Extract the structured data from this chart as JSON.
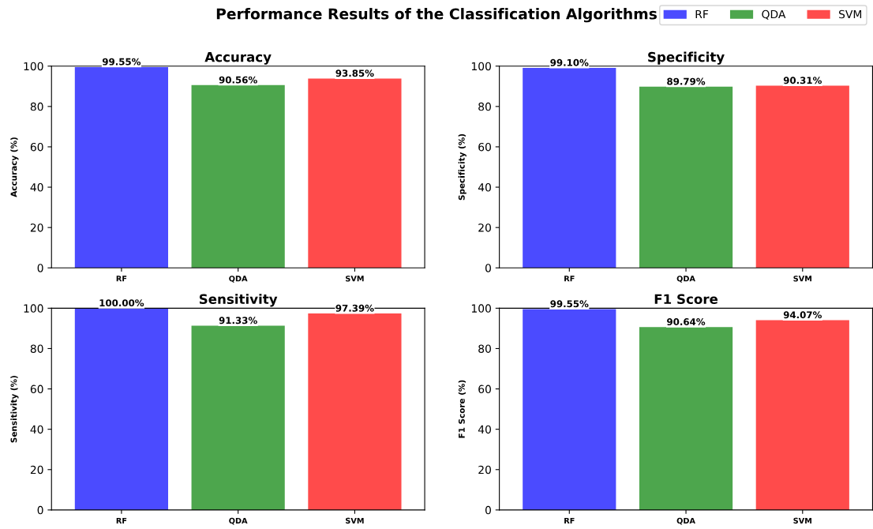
{
  "chart_data": [
    {
      "type": "bar",
      "title": "Accuracy",
      "ylabel": "Accuracy (%)",
      "categories": [
        "RF",
        "QDA",
        "SVM"
      ],
      "series": [
        {
          "name": "RF",
          "color": "#4b4bff",
          "values": [
            99.55,
            null,
            null
          ],
          "value_labels": [
            "99.55%",
            null,
            null
          ]
        },
        {
          "name": "QDA",
          "color": "#4da64d",
          "values": [
            null,
            90.56,
            null
          ],
          "value_labels": [
            null,
            "90.56%",
            null
          ]
        },
        {
          "name": "SVM",
          "color": "#ff4b4b",
          "values": [
            null,
            null,
            93.85
          ],
          "value_labels": [
            null,
            null,
            "93.85%"
          ]
        }
      ],
      "ylim": [
        0,
        100
      ],
      "yticks": [
        0,
        20,
        40,
        60,
        80,
        100
      ],
      "grid": false,
      "legend": "top right",
      "annotations": [
        "Performance Results of the Classification Algorithms"
      ]
    },
    {
      "type": "bar",
      "title": "Specificity",
      "ylabel": "Specificity (%)",
      "categories": [
        "RF",
        "QDA",
        "SVM"
      ],
      "series": [
        {
          "color": "#4b4bff",
          "values": [
            99.1,
            null,
            null
          ],
          "value_labels": [
            "99.10%",
            null,
            null
          ]
        },
        {
          "color": "#4da64d",
          "values": [
            null,
            89.79,
            null
          ],
          "value_labels": [
            null,
            "89.79%",
            null
          ]
        },
        {
          "color": "#ff4b4b",
          "values": [
            null,
            null,
            90.31
          ],
          "value_labels": [
            null,
            null,
            "90.31%"
          ]
        }
      ],
      "ylim": [
        0,
        100
      ],
      "yticks": [
        0,
        20,
        40,
        60,
        80,
        100
      ],
      "grid": false
    },
    {
      "type": "bar",
      "title": "Sensitivity",
      "ylabel": "Sensitivity (%)",
      "categories": [
        "RF",
        "QDA",
        "SVM"
      ],
      "series": [
        {
          "color": "#4b4bff",
          "values": [
            100.0,
            null,
            null
          ],
          "value_labels": [
            "100.00%",
            null,
            null
          ]
        },
        {
          "color": "#4da64d",
          "values": [
            null,
            91.33,
            null
          ],
          "value_labels": [
            null,
            "91.33%",
            null
          ]
        },
        {
          "color": "#ff4b4b",
          "values": [
            null,
            null,
            97.39
          ],
          "value_labels": [
            null,
            null,
            "97.39%"
          ]
        }
      ],
      "ylim": [
        0,
        100
      ],
      "yticks": [
        0,
        20,
        40,
        60,
        80,
        100
      ],
      "grid": false
    },
    {
      "type": "bar",
      "title": "F1 Score",
      "ylabel": "F1 Score (%)",
      "categories": [
        "RF",
        "QDA",
        "SVM"
      ],
      "series": [
        {
          "color": "#4b4bff",
          "values": [
            99.55,
            null,
            null
          ],
          "value_labels": [
            "99.55%",
            null,
            null
          ]
        },
        {
          "color": "#4da64d",
          "values": [
            null,
            90.64,
            null
          ],
          "value_labels": [
            null,
            "90.64%",
            null
          ]
        },
        {
          "color": "#ff4b4b",
          "values": [
            null,
            null,
            94.07
          ],
          "value_labels": [
            null,
            null,
            "94.07%"
          ]
        }
      ],
      "ylim": [
        0,
        100
      ],
      "yticks": [
        0,
        20,
        40,
        60,
        80,
        100
      ],
      "grid": false
    }
  ]
}
